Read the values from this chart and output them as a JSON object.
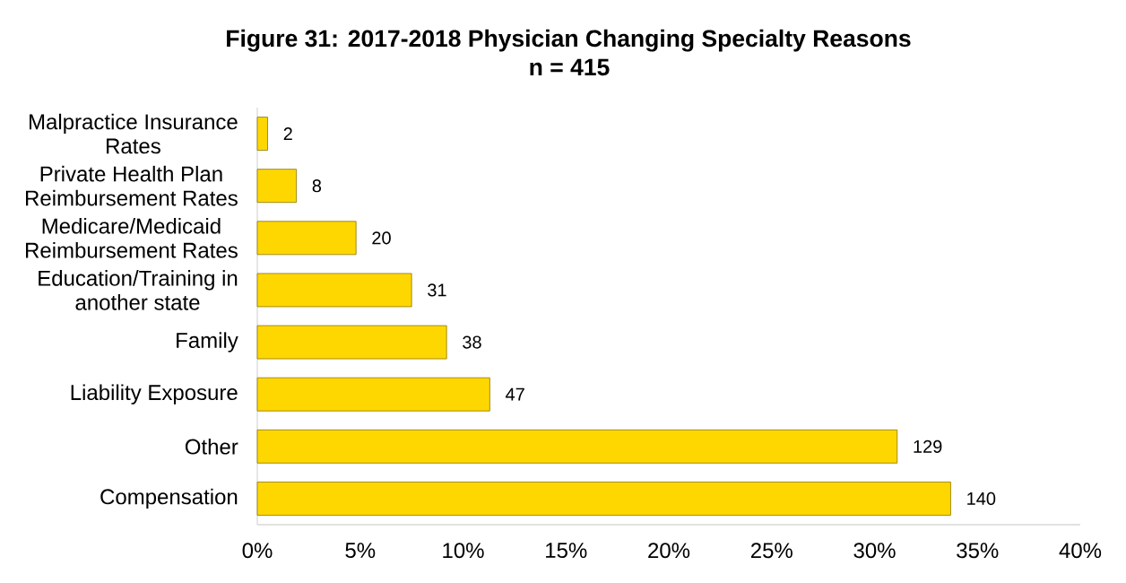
{
  "chart_data": {
    "type": "bar",
    "orientation": "horizontal",
    "title": "Figure 31: 2017-2018 Physician Changing Specialty Reasons",
    "subtitle": "n = 415",
    "categories": [
      "Malpractice Insurance Rates",
      "Private Health Plan Reimbursement Rates",
      "Medicare/Medicaid Reimbursement Rates",
      "Education/Training in another state",
      "Family",
      "Liability Exposure",
      "Other",
      "Compensation"
    ],
    "values": [
      0.5,
      1.9,
      4.8,
      7.5,
      9.2,
      11.3,
      31.1,
      33.7
    ],
    "color": "#ffd700",
    "xlim": [
      0,
      40
    ],
    "xticks": [
      {
        "value": 0,
        "label": "0%"
      },
      {
        "value": 5,
        "label": "5%"
      },
      {
        "value": 10,
        "label": "10%"
      },
      {
        "value": 15,
        "label": "15%"
      },
      {
        "value": 20,
        "label": "20%"
      },
      {
        "value": 25,
        "label": "25%"
      },
      {
        "value": 30,
        "label": "30%"
      },
      {
        "value": 35,
        "label": "35%"
      },
      {
        "value": 40,
        "label": "40%"
      }
    ],
    "annotations": [
      {
        "text": "2",
        "x": 0.5,
        "y": "Malpractice Insurance Rates"
      },
      {
        "text": "8",
        "x": 1.9,
        "y": "Private Health Plan Reimbursement Rates"
      },
      {
        "text": "20",
        "x": 4.8,
        "y": "Medicare/Medicaid Reimbursement Rates"
      },
      {
        "text": "31",
        "x": 7.5,
        "y": "Education/Training in another state"
      },
      {
        "text": "38",
        "x": 9.2,
        "y": "Family"
      },
      {
        "text": "47",
        "x": 11.3,
        "y": "Liability Exposure"
      },
      {
        "text": "129",
        "x": 31.1,
        "y": "Other"
      },
      {
        "text": "140",
        "x": 33.7,
        "y": "Compensation"
      }
    ]
  }
}
